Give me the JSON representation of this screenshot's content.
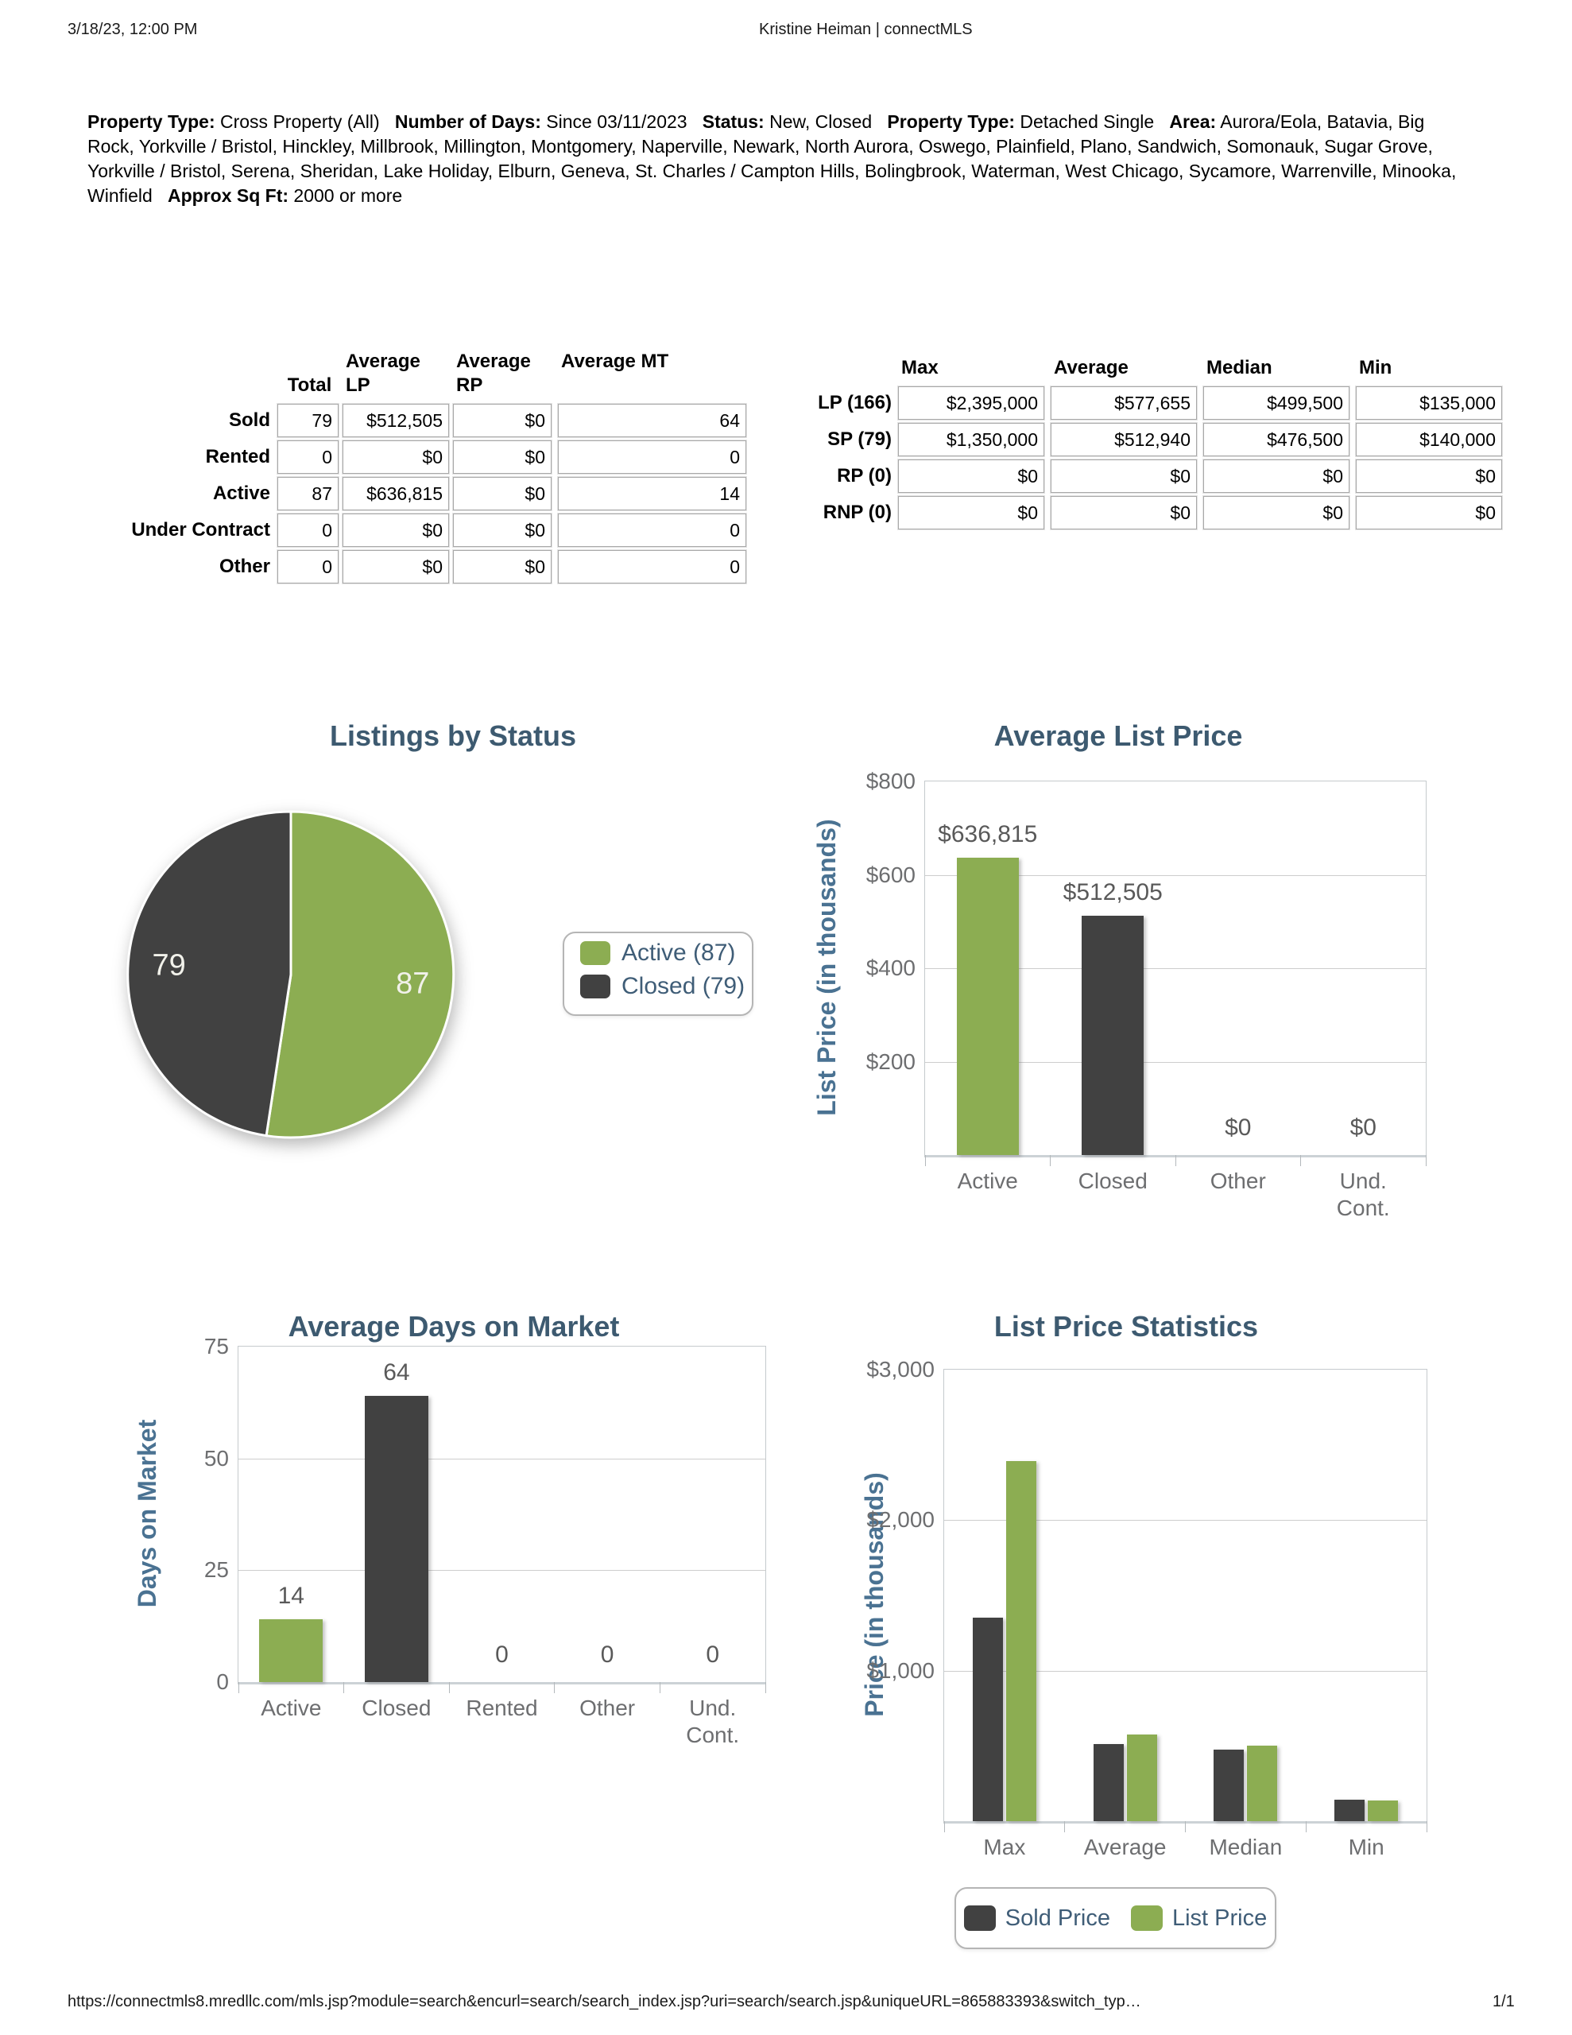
{
  "header": {
    "datetime": "3/18/23, 12:00 PM",
    "title": "Kristine Heiman | connectMLS"
  },
  "criteria": [
    {
      "label": "Property Type:",
      "value": "Cross Property (All)"
    },
    {
      "label": "Number of Days:",
      "value": "Since 03/11/2023"
    },
    {
      "label": "Status:",
      "value": "New, Closed"
    },
    {
      "label": "Property Type:",
      "value": "Detached Single"
    },
    {
      "label": "Area:",
      "value": "Aurora/Eola, Batavia, Big Rock, Yorkville / Bristol, Hinckley, Millbrook, Millington, Montgomery, Naperville, Newark, North Aurora, Oswego, Plainfield, Plano, Sandwich, Somonauk, Sugar Grove, Yorkville / Bristol, Serena, Sheridan, Lake Holiday, Elburn, Geneva, St. Charles / Campton Hills, Bolingbrook, Waterman, West Chicago, Sycamore, Warrenville, Minooka, Winfield"
    },
    {
      "label": "Approx Sq Ft:",
      "value": "2000 or more"
    }
  ],
  "summary_table": {
    "col_headers": [
      "Total",
      "Average\nLP",
      "Average\nRP",
      "Average MT"
    ],
    "rows": [
      {
        "label": "Sold",
        "values": [
          "79",
          "$512,505",
          "$0",
          "64"
        ]
      },
      {
        "label": "Rented",
        "values": [
          "0",
          "$0",
          "$0",
          "0"
        ]
      },
      {
        "label": "Active",
        "values": [
          "87",
          "$636,815",
          "$0",
          "14"
        ]
      },
      {
        "label": "Under Contract",
        "values": [
          "0",
          "$0",
          "$0",
          "0"
        ]
      },
      {
        "label": "Other",
        "values": [
          "0",
          "$0",
          "$0",
          "0"
        ]
      }
    ]
  },
  "stats_table": {
    "col_headers": [
      "Max",
      "Average",
      "Median",
      "Min"
    ],
    "rows": [
      {
        "label": "LP (166)",
        "values": [
          "$2,395,000",
          "$577,655",
          "$499,500",
          "$135,000"
        ]
      },
      {
        "label": "SP (79)",
        "values": [
          "$1,350,000",
          "$512,940",
          "$476,500",
          "$140,000"
        ]
      },
      {
        "label": "RP (0)",
        "values": [
          "$0",
          "$0",
          "$0",
          "$0"
        ]
      },
      {
        "label": "RNP (0)",
        "values": [
          "$0",
          "$0",
          "$0",
          "$0"
        ]
      }
    ]
  },
  "chart_data": [
    {
      "type": "pie",
      "title": "Listings by Status",
      "labels": [
        "Active (87)",
        "Closed (79)"
      ],
      "values": [
        87,
        79
      ],
      "slice_labels": [
        "87",
        "79"
      ],
      "slice_colors": [
        "green",
        "dark"
      ],
      "legend_position": "right"
    },
    {
      "type": "bar",
      "title": "Average List Price",
      "ylabel": "List Price (in thousands)",
      "ylim": [
        0,
        800
      ],
      "yticks": [
        {
          "v": 800,
          "label": "$800"
        },
        {
          "v": 600,
          "label": "$600"
        },
        {
          "v": 400,
          "label": "$400"
        },
        {
          "v": 200,
          "label": "$200"
        }
      ],
      "categories": [
        "Active",
        "Closed",
        "Other",
        "Und.\nCont."
      ],
      "values": [
        636.815,
        512.505,
        0,
        0
      ],
      "value_labels": [
        "$636,815",
        "$512,505",
        "$0",
        "$0"
      ],
      "bar_colors": [
        "green",
        "dark",
        "green",
        "green"
      ],
      "grid": true,
      "legend_position": "none"
    },
    {
      "type": "bar",
      "title": "Average Days on Market",
      "ylabel": "Days on Market",
      "ylim": [
        0,
        75
      ],
      "yticks": [
        {
          "v": 75,
          "label": "75"
        },
        {
          "v": 50,
          "label": "50"
        },
        {
          "v": 25,
          "label": "25"
        },
        {
          "v": 0,
          "label": "0"
        }
      ],
      "categories": [
        "Active",
        "Closed",
        "Rented",
        "Other",
        "Und.\nCont."
      ],
      "values": [
        14,
        64,
        0,
        0,
        0
      ],
      "value_labels": [
        "14",
        "64",
        "0",
        "0",
        "0"
      ],
      "bar_colors": [
        "green",
        "dark",
        "green",
        "green",
        "green"
      ],
      "grid": true,
      "legend_position": "none"
    },
    {
      "type": "bar",
      "grouped": true,
      "title": "List Price Statistics",
      "ylabel": "Price (in thousands)",
      "ylim": [
        0,
        3000
      ],
      "yticks": [
        {
          "v": 3000,
          "label": "$3,000"
        },
        {
          "v": 2000,
          "label": "$2,000"
        },
        {
          "v": 1000,
          "label": "$1,000"
        }
      ],
      "categories": [
        "Max",
        "Average",
        "Median",
        "Min"
      ],
      "series": [
        {
          "name": "Sold Price",
          "color": "dark",
          "values": [
            1350,
            512.94,
            476.5,
            140
          ]
        },
        {
          "name": "List Price",
          "color": "green",
          "values": [
            2395,
            577.655,
            499.5,
            135
          ]
        }
      ],
      "grid": true,
      "legend_position": "bottom"
    }
  ],
  "footer": {
    "url": "https://connectmls8.mredllc.com/mls.jsp?module=search&encurl=search/search_index.jsp?uri=search/search.jsp&uniqueURL=865883393&switch_typ…",
    "page": "1/1"
  },
  "colors": {
    "green": "#8CAD52",
    "dark": "#414141",
    "title_blue": "#3D5A70",
    "axis_blue": "#4A7292",
    "tick_gray": "#6D6E70",
    "value_gray": "#595959",
    "grid": "#CDCDCD",
    "plot_border": "#C5CACD",
    "pie_label": "#F1F1EA",
    "legend_text": "#3F5D77"
  }
}
